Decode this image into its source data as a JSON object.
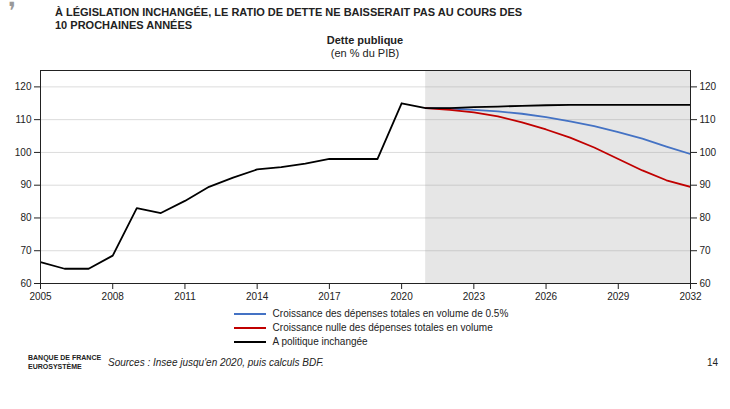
{
  "chart_data": {
    "type": "line",
    "title": "À LÉGISLATION INCHANGÉE, LE RATIO DE DETTE NE BAISSERAIT PAS AU COURS DES\n10 PROCHAINES ANNÉES",
    "subtitle": "Dette publique\n(en % du PIB)",
    "caption": "Sources : Insee jusqu'en 2020, puis calculs BDF.",
    "annotations": [
      "❜",
      "BANQUE DE FRANCE\nEUROSYSTÈME",
      "14"
    ],
    "x": [
      2005,
      2006,
      2007,
      2008,
      2009,
      2010,
      2011,
      2012,
      2013,
      2014,
      2015,
      2016,
      2017,
      2018,
      2019,
      2020,
      2021,
      2022,
      2023,
      2024,
      2025,
      2026,
      2027,
      2028,
      2029,
      2030,
      2031,
      2032
    ],
    "series": [
      {
        "color": "#000000",
        "values": [
          66.5,
          64.5,
          64.5,
          68.5,
          83.0,
          81.5,
          85.2,
          89.5,
          92.3,
          94.8,
          95.5,
          96.6,
          98.0,
          98.0,
          98.0,
          115.0,
          113.5,
          null,
          null,
          null,
          null,
          null,
          null,
          null,
          null,
          null,
          null,
          null
        ]
      },
      {
        "name": "Croissance des dépenses totales en volume de 0.5%",
        "color": "#4472c4",
        "values": [
          null,
          null,
          null,
          null,
          null,
          null,
          null,
          null,
          null,
          null,
          null,
          null,
          null,
          null,
          null,
          null,
          113.5,
          113.4,
          113.0,
          112.5,
          111.8,
          110.8,
          109.5,
          108.0,
          106.2,
          104.2,
          101.8,
          99.5
        ]
      },
      {
        "name": "Croissance nulle des dépenses totales en volume",
        "color": "#c00000",
        "values": [
          null,
          null,
          null,
          null,
          null,
          null,
          null,
          null,
          null,
          null,
          null,
          null,
          null,
          null,
          null,
          null,
          113.5,
          113.0,
          112.2,
          111.0,
          109.2,
          107.0,
          104.5,
          101.5,
          98.0,
          94.5,
          91.5,
          89.5
        ]
      },
      {
        "name": "A politique inchangée",
        "color": "#000000",
        "values": [
          null,
          null,
          null,
          null,
          null,
          null,
          null,
          null,
          null,
          null,
          null,
          null,
          null,
          null,
          null,
          null,
          113.5,
          113.5,
          113.8,
          114.0,
          114.2,
          114.4,
          114.5,
          114.5,
          114.5,
          114.5,
          114.5,
          114.5
        ]
      }
    ],
    "bands": [
      {
        "x": [
          2021,
          2032
        ],
        "color": "#e6e6e6"
      }
    ],
    "xlim": [
      2005,
      2032
    ],
    "xticks": [
      2005,
      2008,
      2011,
      2014,
      2017,
      2020,
      2023,
      2026,
      2029,
      2032
    ],
    "ylim": [
      60,
      125
    ],
    "yticks": [
      60,
      70,
      80,
      90,
      100,
      110,
      120
    ],
    "y2lim": [
      60,
      125
    ],
    "y2ticks": [
      60,
      70,
      80,
      90,
      100,
      110,
      120
    ],
    "grid": true,
    "legend": "bottom"
  }
}
